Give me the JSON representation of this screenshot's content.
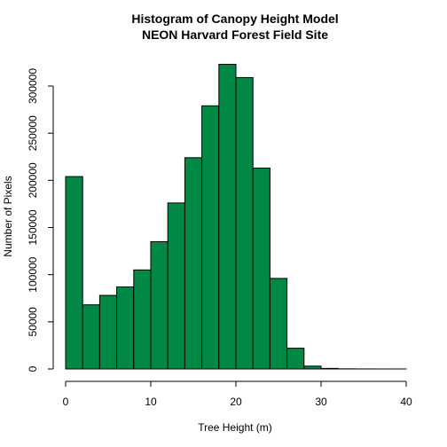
{
  "chart_data": {
    "type": "bar",
    "title": "Histogram of Canopy Height Model",
    "subtitle": "NEON Harvard Forest Field Site",
    "xlabel": "Tree Height (m)",
    "ylabel": "Number of Pixels",
    "xlim": [
      0,
      40
    ],
    "ylim": [
      0,
      320000
    ],
    "x_ticks": [
      0,
      10,
      20,
      30,
      40
    ],
    "y_ticks": [
      0,
      50000,
      100000,
      150000,
      200000,
      250000,
      300000
    ],
    "bins": [
      {
        "x0": 0,
        "x1": 2,
        "value": 204000
      },
      {
        "x0": 2,
        "x1": 4,
        "value": 68000
      },
      {
        "x0": 4,
        "x1": 6,
        "value": 78000
      },
      {
        "x0": 6,
        "x1": 8,
        "value": 87000
      },
      {
        "x0": 8,
        "x1": 10,
        "value": 105000
      },
      {
        "x0": 10,
        "x1": 12,
        "value": 135000
      },
      {
        "x0": 12,
        "x1": 14,
        "value": 176000
      },
      {
        "x0": 14,
        "x1": 16,
        "value": 224000
      },
      {
        "x0": 16,
        "x1": 18,
        "value": 279000
      },
      {
        "x0": 18,
        "x1": 20,
        "value": 323000
      },
      {
        "x0": 20,
        "x1": 22,
        "value": 309000
      },
      {
        "x0": 22,
        "x1": 24,
        "value": 213000
      },
      {
        "x0": 24,
        "x1": 26,
        "value": 96000
      },
      {
        "x0": 26,
        "x1": 28,
        "value": 22000
      },
      {
        "x0": 28,
        "x1": 30,
        "value": 3000
      },
      {
        "x0": 30,
        "x1": 32,
        "value": 600
      },
      {
        "x0": 32,
        "x1": 34,
        "value": 150
      },
      {
        "x0": 34,
        "x1": 36,
        "value": 50
      },
      {
        "x0": 36,
        "x1": 38,
        "value": 20
      },
      {
        "x0": 38,
        "x1": 40,
        "value": 5
      }
    ],
    "bar_color": "#008844",
    "grid": false
  }
}
